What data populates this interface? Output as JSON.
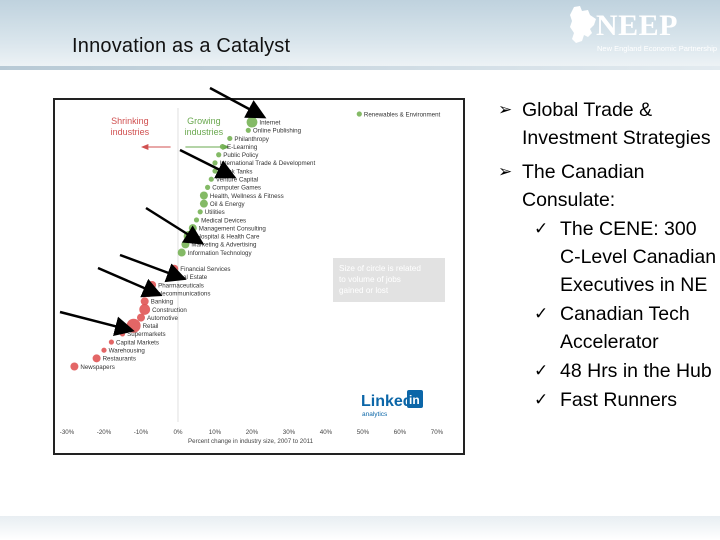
{
  "slide": {
    "title": "Innovation as a Catalyst",
    "logo": {
      "name": "NEEP",
      "tagline": "New England Economic Partnership"
    }
  },
  "bullets": [
    {
      "text": "Global Trade & Investment Strategies",
      "sub": []
    },
    {
      "text": "The Canadian Consulate:",
      "sub": [
        "The CENE: 300 C-Level Canadian Executives in NE",
        "Canadian Tech Accelerator",
        "48 Hrs in the Hub",
        "Fast Runners"
      ]
    }
  ],
  "chart_data": {
    "type": "scatter",
    "title": "",
    "xlabel": "Percent change in industry size, 2007 to 2011",
    "xticks": [
      "-30%",
      "-20%",
      "-10%",
      "0%",
      "10%",
      "20%",
      "30%",
      "40%",
      "50%",
      "60%",
      "70%"
    ],
    "xlim": [
      -30,
      70
    ],
    "legend_shrinking": "Shrinking industries",
    "legend_growing": "Growing industries",
    "size_note": "Size of circle is related to volume of jobs gained or lost",
    "branding": "Linked in analytics",
    "colors": {
      "growing": "#77b255",
      "shrinking": "#e05555"
    },
    "points": [
      {
        "label": "Renewables & Environment",
        "x": 49,
        "size": 1,
        "group": "growing"
      },
      {
        "label": "Internet",
        "x": 20,
        "size": 3,
        "group": "growing"
      },
      {
        "label": "Online Publishing",
        "x": 19,
        "size": 1,
        "group": "growing"
      },
      {
        "label": "Philanthropy",
        "x": 14,
        "size": 1,
        "group": "growing"
      },
      {
        "label": "E-Learning",
        "x": 12,
        "size": 1,
        "group": "growing"
      },
      {
        "label": "Public Policy",
        "x": 11,
        "size": 1,
        "group": "growing"
      },
      {
        "label": "International Trade & Development",
        "x": 10,
        "size": 1,
        "group": "growing"
      },
      {
        "label": "Think Tanks",
        "x": 10,
        "size": 1,
        "group": "growing"
      },
      {
        "label": "Venture Capital",
        "x": 9,
        "size": 1,
        "group": "growing"
      },
      {
        "label": "Computer Games",
        "x": 8,
        "size": 1,
        "group": "growing"
      },
      {
        "label": "Health, Wellness & Fitness",
        "x": 7,
        "size": 2,
        "group": "growing"
      },
      {
        "label": "Oil & Energy",
        "x": 7,
        "size": 2,
        "group": "growing"
      },
      {
        "label": "Utilities",
        "x": 6,
        "size": 1,
        "group": "growing"
      },
      {
        "label": "Medical Devices",
        "x": 5,
        "size": 1,
        "group": "growing"
      },
      {
        "label": "Management Consulting",
        "x": 4,
        "size": 2,
        "group": "growing"
      },
      {
        "label": "Hospital & Health Care",
        "x": 3,
        "size": 3,
        "group": "growing"
      },
      {
        "label": "Marketing & Advertising",
        "x": 2,
        "size": 2,
        "group": "growing"
      },
      {
        "label": "Information Technology",
        "x": 1,
        "size": 2,
        "group": "growing"
      },
      {
        "label": "Financial Services",
        "x": -1,
        "size": 2,
        "group": "shrinking"
      },
      {
        "label": "Real Estate",
        "x": -2,
        "size": 1,
        "group": "shrinking"
      },
      {
        "label": "Pharmaceuticals",
        "x": -7,
        "size": 2,
        "group": "shrinking"
      },
      {
        "label": "Telecommunications",
        "x": -8,
        "size": 2,
        "group": "shrinking"
      },
      {
        "label": "Banking",
        "x": -9,
        "size": 2,
        "group": "shrinking"
      },
      {
        "label": "Construction",
        "x": -9,
        "size": 3,
        "group": "shrinking"
      },
      {
        "label": "Automotive",
        "x": -10,
        "size": 2,
        "group": "shrinking"
      },
      {
        "label": "Retail",
        "x": -12,
        "size": 4,
        "group": "shrinking"
      },
      {
        "label": "Supermarkets",
        "x": -15,
        "size": 1,
        "group": "shrinking"
      },
      {
        "label": "Capital Markets",
        "x": -18,
        "size": 1,
        "group": "shrinking"
      },
      {
        "label": "Warehousing",
        "x": -20,
        "size": 1,
        "group": "shrinking"
      },
      {
        "label": "Restaurants",
        "x": -22,
        "size": 2,
        "group": "shrinking"
      },
      {
        "label": "Newspapers",
        "x": -28,
        "size": 2,
        "group": "shrinking"
      }
    ]
  }
}
